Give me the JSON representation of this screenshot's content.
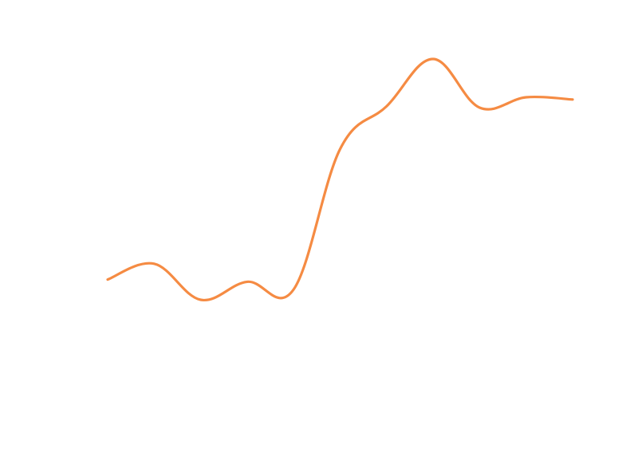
{
  "chart_data": {
    "type": "line",
    "title": "",
    "xlabel": "",
    "ylabel": "",
    "grid": false,
    "legend": "none",
    "axes_visible": false,
    "curve": "smooth",
    "x": [
      0,
      1,
      2,
      3,
      4,
      5,
      6,
      7,
      8,
      9,
      10
    ],
    "xlim": [
      0,
      10
    ],
    "ylim": [
      0,
      10
    ],
    "series": [
      {
        "color": "#f58b43",
        "values": [
          4.0,
          4.35,
          3.55,
          3.95,
          3.78,
          6.9,
          7.85,
          8.9,
          7.82,
          8.05,
          8.0
        ]
      }
    ]
  }
}
